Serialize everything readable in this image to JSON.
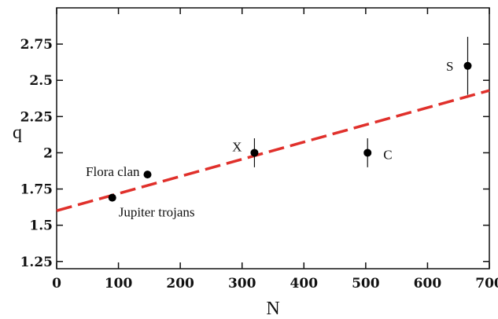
{
  "chart_data": {
    "type": "scatter",
    "title": "",
    "xlabel": "N",
    "ylabel": "q",
    "xlim": [
      0,
      700
    ],
    "ylim": [
      1.2,
      3.0
    ],
    "grid": false,
    "x_ticks": [
      0,
      100,
      200,
      300,
      400,
      500,
      600,
      700
    ],
    "y_ticks": [
      1.25,
      1.5,
      1.75,
      2,
      2.25,
      2.5,
      2.75
    ],
    "x_tick_labels": [
      "0",
      "100",
      "200",
      "300",
      "400",
      "500",
      "600",
      "700"
    ],
    "y_tick_labels": [
      "1.25",
      "1.5",
      "1.75",
      "2",
      "2.25",
      "2.5",
      "2.75"
    ],
    "points": [
      {
        "x": 90,
        "y": 1.69,
        "label": "Jupiter trojans",
        "err": null
      },
      {
        "x": 147,
        "y": 1.85,
        "label": "Flora clan",
        "err": null
      },
      {
        "x": 320,
        "y": 2.0,
        "label": "X",
        "err": 0.1
      },
      {
        "x": 503,
        "y": 2.0,
        "label": "C",
        "err": 0.1
      },
      {
        "x": 665,
        "y": 2.6,
        "label": "S",
        "err": 0.2
      }
    ],
    "fit_line": {
      "x": [
        0,
        700
      ],
      "y": [
        1.6,
        2.43
      ],
      "color": "#e0302b",
      "style": "dashed"
    }
  }
}
